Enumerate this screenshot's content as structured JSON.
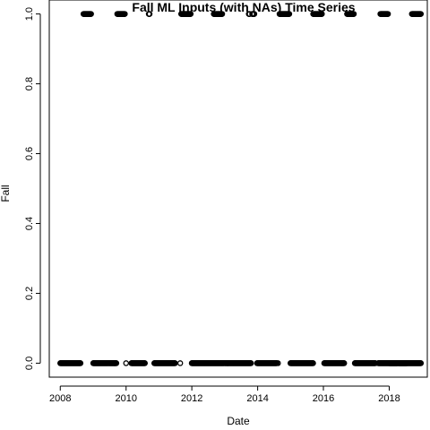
{
  "chart_data": {
    "type": "scatter",
    "title": "Fall ML Inputs (with NAs) Time Series",
    "xlabel": "Date",
    "ylabel": "Fall",
    "xlim": [
      "2007-09-01",
      "2019-02-28"
    ],
    "ylim": [
      -0.04,
      1.04
    ],
    "x_ticks": [
      "2008",
      "2010",
      "2012",
      "2014",
      "2016",
      "2018"
    ],
    "y_ticks": [
      "0.0",
      "0.2",
      "0.4",
      "0.6",
      "0.8",
      "1.0"
    ],
    "grid": false,
    "marker": "open-circle",
    "series": [
      {
        "values_note_free": true,
        "runs": [
          {
            "y": 0,
            "start": "2008-01-01",
            "end": "2008-08-15"
          },
          {
            "y": 1,
            "start": "2008-09-15",
            "end": "2008-12-10"
          },
          {
            "y": 0,
            "start": "2009-01-01",
            "end": "2009-06-15"
          },
          {
            "y": 0,
            "start": "2009-06-20",
            "end": "2009-09-15"
          },
          {
            "y": 1,
            "start": "2009-09-25",
            "end": "2009-12-20"
          },
          {
            "y": 0,
            "start": "2010-01-01",
            "end": "2010-01-01"
          },
          {
            "y": 0,
            "start": "2010-03-01",
            "end": "2010-07-31"
          },
          {
            "y": 1,
            "start": "2010-09-10",
            "end": "2010-09-20"
          },
          {
            "y": 0,
            "start": "2010-11-10",
            "end": "2011-07-01"
          },
          {
            "y": 0,
            "start": "2011-08-25",
            "end": "2011-08-25"
          },
          {
            "y": 1,
            "start": "2011-09-05",
            "end": "2011-12-20"
          },
          {
            "y": 0,
            "start": "2011-12-31",
            "end": "2012-12-25"
          },
          {
            "y": 1,
            "start": "2012-09-01",
            "end": "2012-12-05"
          },
          {
            "y": 0,
            "start": "2013-01-01",
            "end": "2013-10-20"
          },
          {
            "y": 1,
            "start": "2013-09-25",
            "end": "2013-10-05"
          },
          {
            "y": 1,
            "start": "2013-11-01",
            "end": "2013-11-25"
          },
          {
            "y": 0,
            "start": "2013-12-25",
            "end": "2014-08-01"
          },
          {
            "y": 0,
            "start": "2014-08-15",
            "end": "2014-08-15"
          },
          {
            "y": 1,
            "start": "2014-09-01",
            "end": "2014-12-20"
          },
          {
            "y": 0,
            "start": "2014-12-31",
            "end": "2015-09-10"
          },
          {
            "y": 1,
            "start": "2015-09-10",
            "end": "2015-12-15"
          },
          {
            "y": 0,
            "start": "2016-01-10",
            "end": "2016-08-20"
          },
          {
            "y": 1,
            "start": "2016-09-20",
            "end": "2016-12-05"
          },
          {
            "y": 0,
            "start": "2016-12-15",
            "end": "2017-07-31"
          },
          {
            "y": 1,
            "start": "2017-09-25",
            "end": "2017-12-20"
          },
          {
            "y": 0,
            "start": "2017-09-01",
            "end": "2018-07-15"
          },
          {
            "y": 0,
            "start": "2018-01-05",
            "end": "2018-03-31"
          },
          {
            "y": 1,
            "start": "2018-09-10",
            "end": "2018-12-20"
          },
          {
            "y": 0,
            "start": "2018-04-20",
            "end": "2018-12-20"
          }
        ]
      }
    ]
  }
}
